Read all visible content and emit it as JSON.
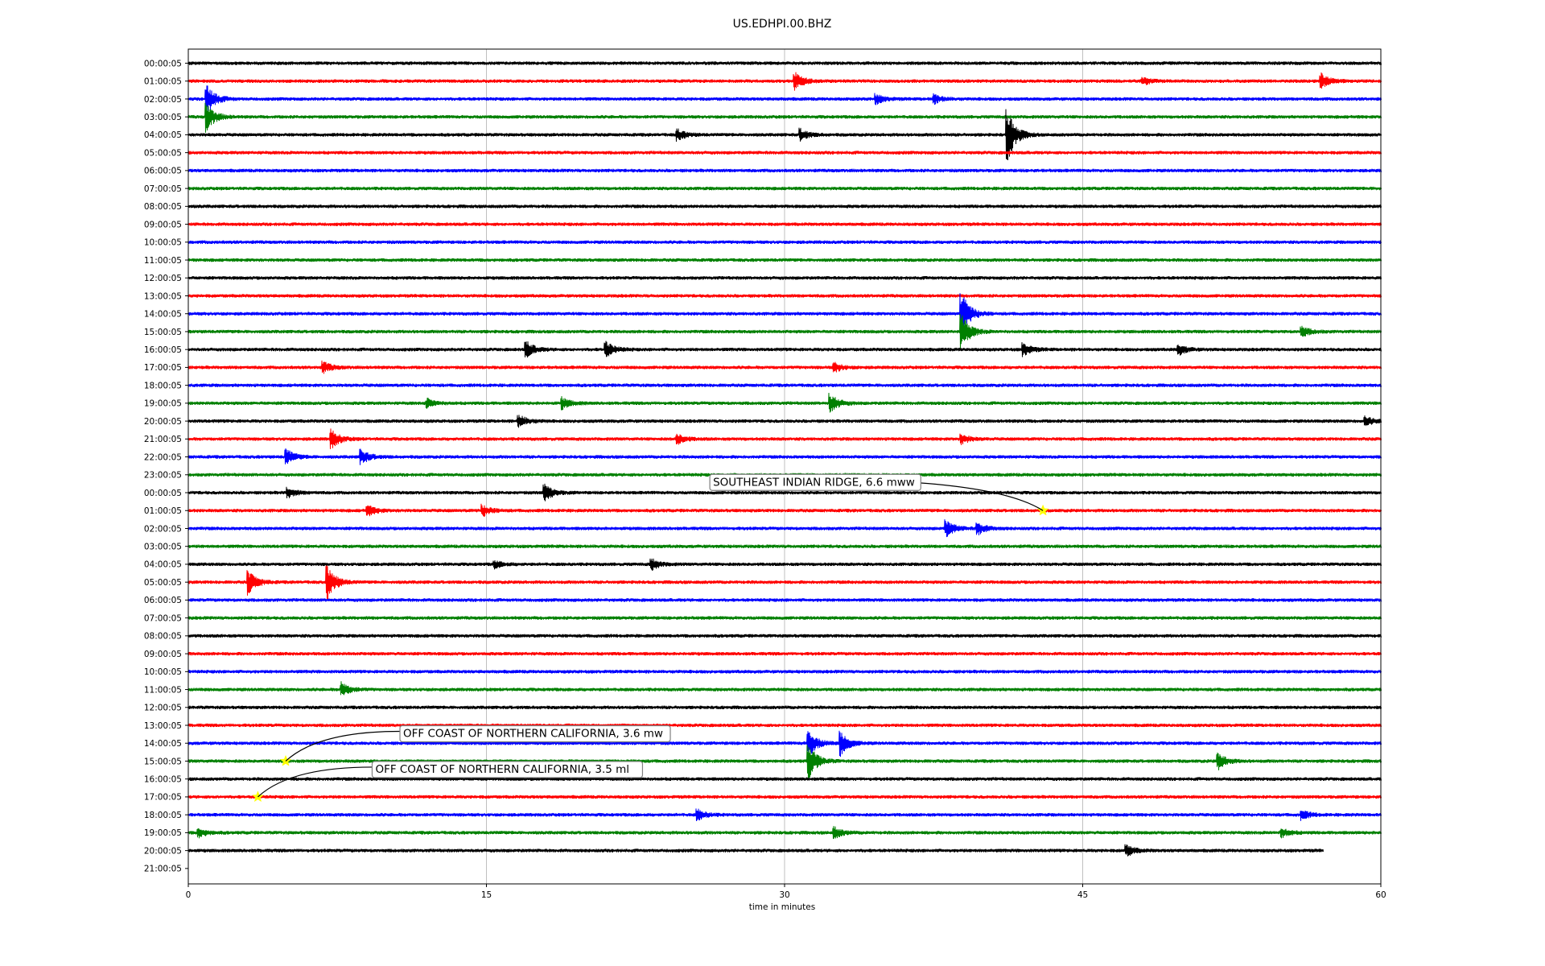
{
  "chart_data": {
    "type": "line",
    "title": "US.EDHPI.00.BHZ",
    "xlabel": "time in minutes",
    "ylabel": "",
    "xlim": [
      0,
      60
    ],
    "xticks": [
      0,
      15,
      30,
      45,
      60
    ],
    "grid": "vertical",
    "colors": [
      "#000000",
      "#ff0000",
      "#0000ff",
      "#008000"
    ],
    "row_labels": [
      "00:00:05",
      "01:00:05",
      "02:00:05",
      "03:00:05",
      "04:00:05",
      "05:00:05",
      "06:00:05",
      "07:00:05",
      "08:00:05",
      "09:00:05",
      "10:00:05",
      "11:00:05",
      "12:00:05",
      "13:00:05",
      "14:00:05",
      "15:00:05",
      "16:00:05",
      "17:00:05",
      "18:00:05",
      "19:00:05",
      "20:00:05",
      "21:00:05",
      "22:00:05",
      "23:00:05",
      "00:00:05",
      "01:00:05",
      "02:00:05",
      "03:00:05",
      "04:00:05",
      "05:00:05",
      "06:00:05",
      "07:00:05",
      "08:00:05",
      "09:00:05",
      "10:00:05",
      "11:00:05",
      "12:00:05",
      "13:00:05",
      "14:00:05",
      "15:00:05",
      "16:00:05",
      "17:00:05",
      "18:00:05",
      "19:00:05",
      "20:00:05",
      "21:00:05"
    ],
    "trace_end_minutes": [
      60,
      60,
      60,
      60,
      60,
      60,
      60,
      60,
      60,
      60,
      60,
      60,
      60,
      60,
      60,
      60,
      60,
      60,
      60,
      60,
      60,
      60,
      60,
      60,
      60,
      60,
      60,
      60,
      60,
      60,
      60,
      60,
      60,
      60,
      60,
      60,
      60,
      60,
      60,
      60,
      60,
      60,
      60,
      60,
      57.1,
      0
    ],
    "spikes": [
      {
        "row": 1,
        "t": 30.5,
        "a": 1.0
      },
      {
        "row": 1,
        "t": 57,
        "a": 0.8
      },
      {
        "row": 1,
        "t": 48,
        "a": 0.4
      },
      {
        "row": 2,
        "t": 34.6,
        "a": 0.5
      },
      {
        "row": 2,
        "t": 37.5,
        "a": 0.5
      },
      {
        "row": 2,
        "t": 0.9,
        "a": 1.8
      },
      {
        "row": 3,
        "t": 0.9,
        "a": 1.6
      },
      {
        "row": 4,
        "t": 41.2,
        "a": 3.0
      },
      {
        "row": 4,
        "t": 24.6,
        "a": 0.6
      },
      {
        "row": 4,
        "t": 30.8,
        "a": 0.6
      },
      {
        "row": 14,
        "t": 38.9,
        "a": 2.5
      },
      {
        "row": 15,
        "t": 38.9,
        "a": 2.0
      },
      {
        "row": 15,
        "t": 56,
        "a": 0.6
      },
      {
        "row": 16,
        "t": 17,
        "a": 0.9
      },
      {
        "row": 16,
        "t": 21,
        "a": 0.9
      },
      {
        "row": 16,
        "t": 42,
        "a": 0.7
      },
      {
        "row": 16,
        "t": 49.8,
        "a": 0.6
      },
      {
        "row": 17,
        "t": 6.8,
        "a": 0.6
      },
      {
        "row": 17,
        "t": 32.5,
        "a": 0.5
      },
      {
        "row": 19,
        "t": 12,
        "a": 0.5
      },
      {
        "row": 19,
        "t": 18.8,
        "a": 0.6
      },
      {
        "row": 19,
        "t": 32.3,
        "a": 1.0
      },
      {
        "row": 20,
        "t": 16.6,
        "a": 0.7
      },
      {
        "row": 20,
        "t": 59.2,
        "a": 0.5
      },
      {
        "row": 21,
        "t": 7.2,
        "a": 1.0
      },
      {
        "row": 21,
        "t": 24.6,
        "a": 0.6
      },
      {
        "row": 21,
        "t": 38.9,
        "a": 0.5
      },
      {
        "row": 22,
        "t": 4.9,
        "a": 0.9
      },
      {
        "row": 22,
        "t": 8.7,
        "a": 0.8
      },
      {
        "row": 24,
        "t": 17.9,
        "a": 1.0
      },
      {
        "row": 24,
        "t": 5,
        "a": 0.5
      },
      {
        "row": 25,
        "t": 9,
        "a": 0.6
      },
      {
        "row": 25,
        "t": 14.8,
        "a": 0.6
      },
      {
        "row": 26,
        "t": 38.1,
        "a": 1.0
      },
      {
        "row": 26,
        "t": 39.7,
        "a": 0.7
      },
      {
        "row": 28,
        "t": 23.3,
        "a": 0.6
      },
      {
        "row": 28,
        "t": 15.4,
        "a": 0.4
      },
      {
        "row": 29,
        "t": 3,
        "a": 1.4
      },
      {
        "row": 29,
        "t": 7,
        "a": 1.8
      },
      {
        "row": 35,
        "t": 7.7,
        "a": 0.8
      },
      {
        "row": 38,
        "t": 31.2,
        "a": 1.6
      },
      {
        "row": 38,
        "t": 32.8,
        "a": 1.4
      },
      {
        "row": 39,
        "t": 31.2,
        "a": 2.0
      },
      {
        "row": 39,
        "t": 51.8,
        "a": 0.9
      },
      {
        "row": 42,
        "t": 25.6,
        "a": 0.6
      },
      {
        "row": 42,
        "t": 56,
        "a": 0.5
      },
      {
        "row": 43,
        "t": 0.5,
        "a": 0.5
      },
      {
        "row": 43,
        "t": 32.5,
        "a": 0.6
      },
      {
        "row": 43,
        "t": 55,
        "a": 0.5
      },
      {
        "row": 44,
        "t": 47.2,
        "a": 0.6
      }
    ],
    "annotations": [
      {
        "text": "SOUTHEAST INDIAN RIDGE, 6.6 mww",
        "row": 25,
        "t": 43.0
      },
      {
        "text": "OFF COAST OF NORTHERN CALIFORNIA, 3.6 mw",
        "row": 39,
        "t": 4.9
      },
      {
        "text": "OFF COAST OF NORTHERN CALIFORNIA, 3.5 ml",
        "row": 41,
        "t": 3.5
      }
    ],
    "event_marker_color": "#ffff00"
  }
}
